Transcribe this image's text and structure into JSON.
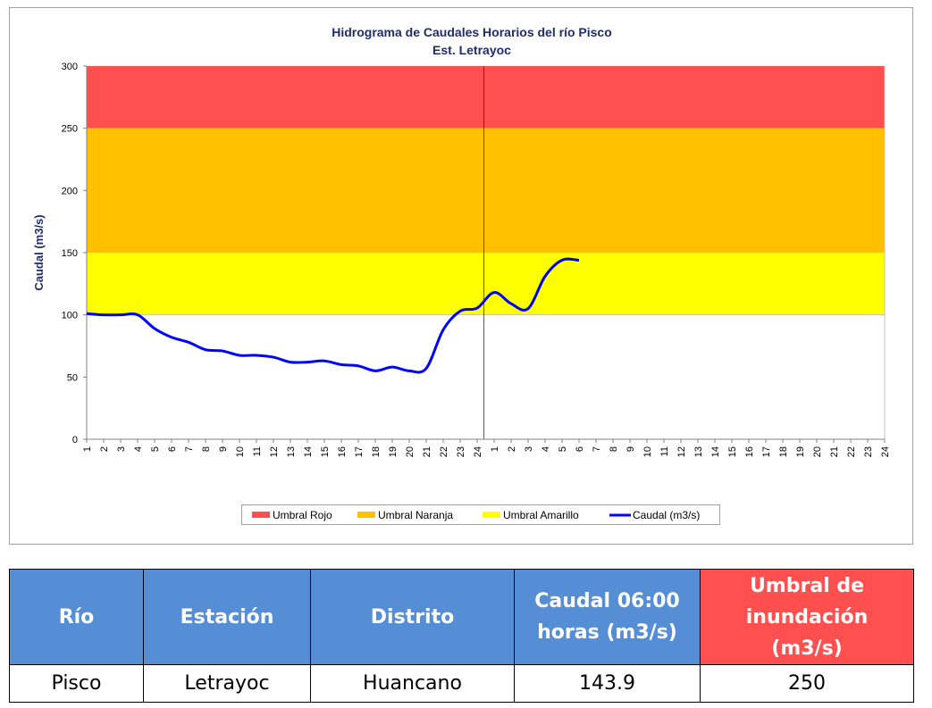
{
  "chart_data": {
    "type": "line",
    "title": "Hidrograma de Caudales Horarios del río Pisco",
    "subtitle": "Est. Letrayoc",
    "y_label": "Caudal  (m3/s)",
    "categories": [
      "1",
      "2",
      "3",
      "4",
      "5",
      "6",
      "7",
      "8",
      "9",
      "10",
      "11",
      "12",
      "13",
      "14",
      "15",
      "16",
      "17",
      "18",
      "19",
      "20",
      "21",
      "22",
      "23",
      "24",
      "1",
      "2",
      "3",
      "4",
      "5",
      "6",
      "7",
      "8",
      "9",
      "10",
      "11",
      "12",
      "13",
      "14",
      "15",
      "16",
      "17",
      "18",
      "19",
      "20",
      "21",
      "22",
      "23",
      "24"
    ],
    "ylim": [
      0,
      300
    ],
    "yticks": [
      0,
      50,
      100,
      150,
      200,
      250,
      300
    ],
    "thresholds": [
      {
        "name": "Umbral Rojo",
        "color": "#ff5050",
        "range": [
          250,
          300
        ]
      },
      {
        "name": "Umbral Naranja",
        "color": "#ffc000",
        "range": [
          150,
          250
        ]
      },
      {
        "name": "Umbral Amarillo",
        "color": "#ffff00",
        "range": [
          100,
          150
        ]
      }
    ],
    "series": [
      {
        "name": "Caudal (m3/s)",
        "color": "#0000ff",
        "values": [
          101,
          100,
          100,
          100,
          89,
          82,
          78,
          72,
          71,
          67.5,
          67.5,
          66,
          62,
          62,
          63,
          60,
          59,
          55,
          58,
          55,
          57,
          88,
          103,
          105.5,
          118,
          109,
          105,
          131,
          144,
          143.9,
          null,
          null,
          null,
          null,
          null,
          null,
          null,
          null,
          null,
          null,
          null,
          null,
          null,
          null,
          null,
          null,
          null,
          null
        ]
      }
    ]
  },
  "table": {
    "header": [
      "Río",
      "Estación",
      "Distrito",
      "Caudal 06:00 horas (m3/s)",
      "Umbral de inundación (m3/s)"
    ],
    "rows": [
      [
        "Pisco",
        "Letrayoc",
        "Huancano",
        "143.9",
        "250"
      ]
    ]
  }
}
